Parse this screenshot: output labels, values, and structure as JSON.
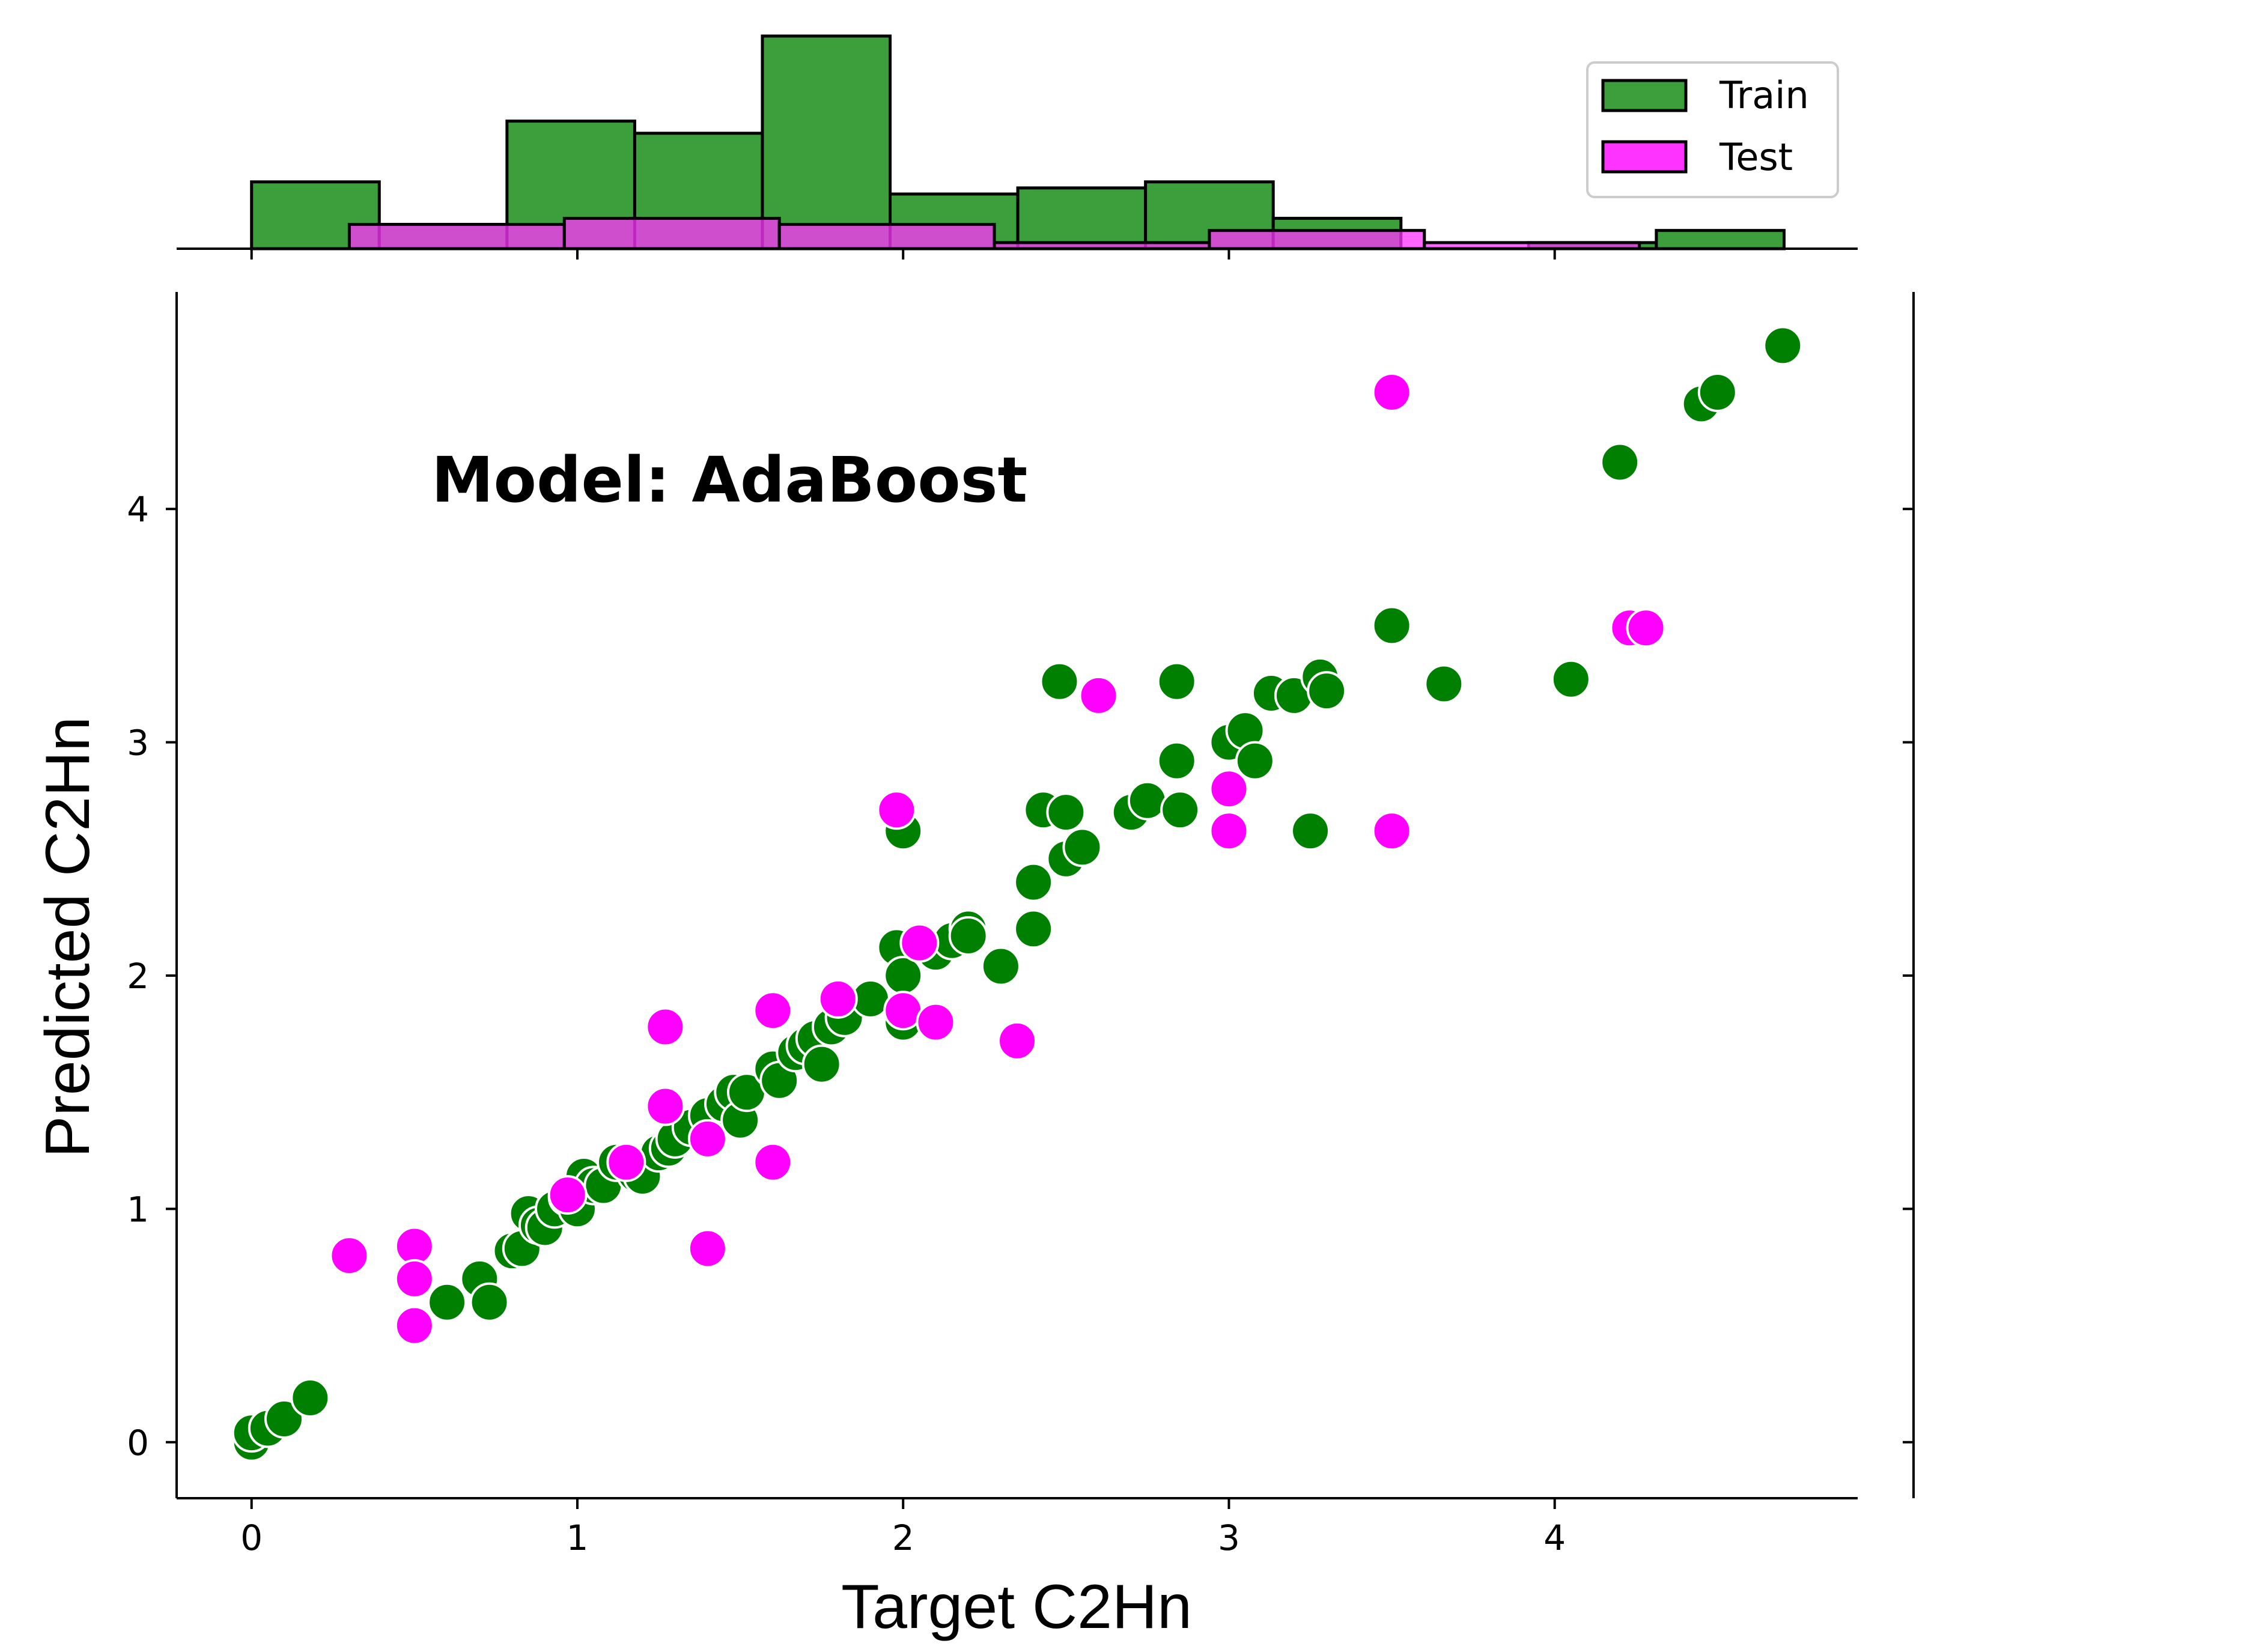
{
  "chart_data": {
    "type": "scatter",
    "annotation": "Model: AdaBoost",
    "xlabel": "Target C2Hn",
    "ylabel": "Predicted C2Hn",
    "xlim": [
      -0.23,
      4.93
    ],
    "ylim": [
      -0.24,
      4.93
    ],
    "xticks": [
      "0",
      "1",
      "2",
      "3",
      "4"
    ],
    "yticks": [
      "0",
      "1",
      "2",
      "3",
      "4"
    ],
    "grid": false,
    "legend": {
      "placement": "top-right",
      "entries": [
        "Train",
        "Test"
      ]
    },
    "colors": {
      "train": "#008000",
      "test": "#ff00ff",
      "train_hist": "#3c9f3c",
      "test_hist": "#ff33ff"
    },
    "series": [
      {
        "name": "Train",
        "points": [
          [
            0.0,
            0.0
          ],
          [
            0.0,
            0.04
          ],
          [
            0.05,
            0.06
          ],
          [
            0.1,
            0.1
          ],
          [
            0.18,
            0.19
          ],
          [
            0.6,
            0.6
          ],
          [
            0.7,
            0.7
          ],
          [
            0.73,
            0.6
          ],
          [
            0.8,
            0.82
          ],
          [
            0.83,
            0.83
          ],
          [
            0.85,
            0.98
          ],
          [
            0.88,
            0.93
          ],
          [
            0.9,
            0.92
          ],
          [
            0.93,
            1.0
          ],
          [
            0.97,
            1.05
          ],
          [
            1.0,
            1.0
          ],
          [
            1.02,
            1.14
          ],
          [
            1.05,
            1.1
          ],
          [
            1.08,
            1.1
          ],
          [
            1.12,
            1.2
          ],
          [
            1.18,
            1.15
          ],
          [
            1.2,
            1.14
          ],
          [
            1.25,
            1.24
          ],
          [
            1.28,
            1.26
          ],
          [
            1.3,
            1.3
          ],
          [
            1.35,
            1.35
          ],
          [
            1.4,
            1.4
          ],
          [
            1.45,
            1.45
          ],
          [
            1.48,
            1.5
          ],
          [
            1.5,
            1.38
          ],
          [
            1.52,
            1.5
          ],
          [
            1.6,
            1.6
          ],
          [
            1.62,
            1.55
          ],
          [
            1.67,
            1.67
          ],
          [
            1.7,
            1.7
          ],
          [
            1.73,
            1.73
          ],
          [
            1.75,
            1.62
          ],
          [
            1.78,
            1.78
          ],
          [
            1.82,
            1.82
          ],
          [
            1.9,
            1.9
          ],
          [
            1.98,
            2.12
          ],
          [
            2.0,
            1.8
          ],
          [
            2.0,
            2.0
          ],
          [
            2.0,
            2.62
          ],
          [
            2.1,
            2.1
          ],
          [
            2.15,
            2.15
          ],
          [
            2.2,
            2.2
          ],
          [
            2.2,
            2.17
          ],
          [
            2.3,
            2.04
          ],
          [
            2.4,
            2.2
          ],
          [
            2.4,
            2.4
          ],
          [
            2.43,
            2.71
          ],
          [
            2.5,
            2.5
          ],
          [
            2.5,
            2.7
          ],
          [
            2.48,
            3.26
          ],
          [
            2.55,
            2.55
          ],
          [
            2.7,
            2.7
          ],
          [
            2.75,
            2.75
          ],
          [
            2.84,
            2.92
          ],
          [
            2.85,
            2.71
          ],
          [
            2.84,
            3.26
          ],
          [
            3.0,
            3.0
          ],
          [
            3.05,
            3.05
          ],
          [
            3.08,
            2.92
          ],
          [
            3.13,
            3.21
          ],
          [
            3.2,
            3.2
          ],
          [
            3.25,
            2.62
          ],
          [
            3.28,
            3.28
          ],
          [
            3.3,
            3.22
          ],
          [
            3.5,
            3.5
          ],
          [
            3.66,
            3.25
          ],
          [
            4.05,
            3.27
          ],
          [
            4.2,
            4.2
          ],
          [
            4.45,
            4.45
          ],
          [
            4.5,
            4.5
          ],
          [
            4.7,
            4.7
          ]
        ]
      },
      {
        "name": "Test",
        "points": [
          [
            0.3,
            0.8
          ],
          [
            0.5,
            0.84
          ],
          [
            0.5,
            0.7
          ],
          [
            0.5,
            0.5
          ],
          [
            0.97,
            1.06
          ],
          [
            1.15,
            1.2
          ],
          [
            1.27,
            1.78
          ],
          [
            1.27,
            1.44
          ],
          [
            1.4,
            0.83
          ],
          [
            1.4,
            1.3
          ],
          [
            1.6,
            1.85
          ],
          [
            1.6,
            1.2
          ],
          [
            1.8,
            1.9
          ],
          [
            1.98,
            2.71
          ],
          [
            2.0,
            1.85
          ],
          [
            2.05,
            2.14
          ],
          [
            2.1,
            1.8
          ],
          [
            2.35,
            1.72
          ],
          [
            2.6,
            3.2
          ],
          [
            3.0,
            2.8
          ],
          [
            3.0,
            2.62
          ],
          [
            3.5,
            4.5
          ],
          [
            3.5,
            2.62
          ],
          [
            4.23,
            3.49
          ],
          [
            4.28,
            3.49
          ]
        ]
      }
    ],
    "histogram": {
      "train": {
        "edges": [
          0.0,
          0.392,
          0.784,
          1.176,
          1.568,
          1.96,
          2.352,
          2.744,
          3.136,
          3.528,
          3.92,
          4.312,
          4.704
        ],
        "counts": [
          11,
          4,
          21,
          19,
          35,
          9,
          10,
          11,
          5,
          0,
          1,
          3
        ]
      },
      "test": {
        "edges": [
          0.3,
          0.96,
          1.62,
          2.28,
          2.94,
          3.6,
          4.26
        ],
        "counts": [
          4,
          5,
          4,
          1,
          3,
          1
        ]
      }
    }
  }
}
